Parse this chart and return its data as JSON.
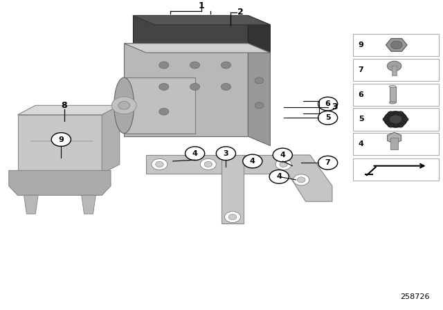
{
  "bg_color": "#ffffff",
  "fig_width": 6.4,
  "fig_height": 4.48,
  "dpi": 100,
  "diagram_id": "258726"
}
